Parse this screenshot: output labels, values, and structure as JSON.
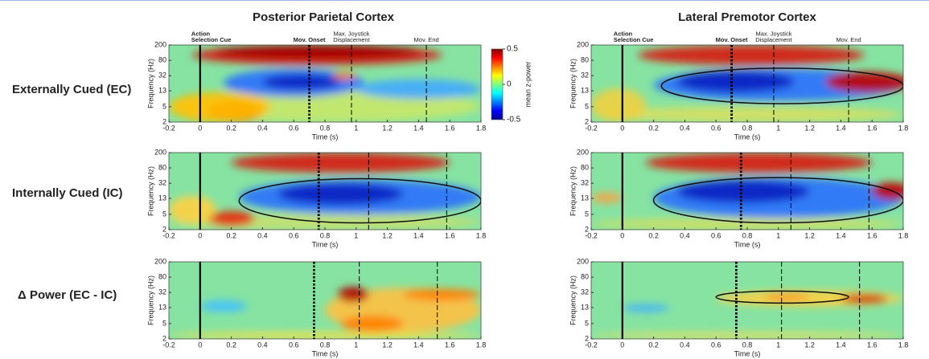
{
  "column_titles": [
    "Posterior Parietal Cortex",
    "Lateral Premotor Cortex"
  ],
  "row_labels": [
    "Externally Cued (EC)",
    "Internally Cued (IC)",
    "Δ Power (EC - IC)"
  ],
  "colorbar": {
    "label": "mean z-power",
    "lim": [
      -0.5,
      0.5
    ],
    "ticks": [
      0.5,
      0,
      -0.5
    ]
  },
  "chart_data": [
    {
      "type": "heatmap",
      "xlabel": "Time (s)",
      "ylabel": "Frequency (Hz)",
      "xlim": [
        -0.2,
        1.8
      ],
      "xticks": [
        -0.2,
        0,
        0.2,
        0.4,
        0.6,
        0.8,
        1,
        1.2,
        1.4,
        1.6,
        1.8
      ],
      "ylim": [
        2,
        200
      ],
      "yticks": [
        2,
        5,
        13,
        32,
        80,
        200
      ],
      "log_y": true,
      "events": [
        {
          "value": 0,
          "style": "solid",
          "label": [
            "Action",
            "Selection Cue"
          ]
        },
        {
          "value": 0.7,
          "style": "dotted",
          "label": [
            "Mov. Onset"
          ]
        },
        {
          "value": 0.97,
          "style": "dashed",
          "label": [
            "Max. Joystick",
            "Displacement"
          ]
        },
        {
          "value": 1.45,
          "style": "dashed",
          "label": [
            "Mov. End"
          ]
        }
      ]
    },
    {
      "type": "heatmap",
      "xlabel": "Time (s)",
      "ylabel": "Frequency (Hz)",
      "xlim": [
        -0.2,
        1.8
      ],
      "xticks": [
        -0.2,
        0,
        0.2,
        0.4,
        0.6,
        0.8,
        1,
        1.2,
        1.4,
        1.6,
        1.8
      ],
      "ylim": [
        2,
        200
      ],
      "yticks": [
        2,
        5,
        13,
        32,
        80,
        200
      ],
      "log_y": true,
      "events": [
        {
          "value": 0,
          "style": "solid",
          "label": [
            "Action",
            "Selection Cue"
          ]
        },
        {
          "value": 0.7,
          "style": "dotted",
          "label": [
            "Mov. Onset"
          ]
        },
        {
          "value": 0.97,
          "style": "dashed",
          "label": [
            "Max. Joystick",
            "Displacement"
          ]
        },
        {
          "value": 1.45,
          "style": "dashed",
          "label": [
            "Mov. End"
          ]
        }
      ]
    },
    {
      "type": "heatmap",
      "xlabel": "Time (s)",
      "ylabel": "Frequency (Hz)",
      "xlim": [
        -0.2,
        1.8
      ],
      "xticks": [
        -0.2,
        0,
        0.2,
        0.4,
        0.6,
        0.8,
        1,
        1.2,
        1.4,
        1.6,
        1.8
      ],
      "ylim": [
        2,
        200
      ],
      "yticks": [
        2,
        5,
        13,
        32,
        80,
        200
      ],
      "log_y": true,
      "events": [
        {
          "value": 0,
          "style": "solid"
        },
        {
          "value": 0.76,
          "style": "dotted"
        },
        {
          "value": 1.08,
          "style": "dashed"
        },
        {
          "value": 1.58,
          "style": "dashed"
        }
      ]
    },
    {
      "type": "heatmap",
      "xlabel": "Time (s)",
      "ylabel": "Frequency (Hz)",
      "xlim": [
        -0.2,
        1.8
      ],
      "xticks": [
        -0.2,
        0,
        0.2,
        0.4,
        0.6,
        0.8,
        1,
        1.2,
        1.4,
        1.6,
        1.8
      ],
      "ylim": [
        2,
        200
      ],
      "yticks": [
        2,
        5,
        13,
        32,
        80,
        200
      ],
      "log_y": true,
      "events": [
        {
          "value": 0,
          "style": "solid"
        },
        {
          "value": 0.76,
          "style": "dotted"
        },
        {
          "value": 1.08,
          "style": "dashed"
        },
        {
          "value": 1.58,
          "style": "dashed"
        }
      ]
    },
    {
      "type": "heatmap",
      "xlabel": "Time (s)",
      "ylabel": "Frequency (Hz)",
      "xlim": [
        -0.2,
        1.8
      ],
      "xticks": [
        -0.2,
        0,
        0.2,
        0.4,
        0.6,
        0.8,
        1,
        1.2,
        1.4,
        1.6,
        1.8
      ],
      "ylim": [
        2,
        200
      ],
      "yticks": [
        2,
        5,
        13,
        32,
        80,
        200
      ],
      "log_y": true,
      "events": [
        {
          "value": 0,
          "style": "solid"
        },
        {
          "value": 0.73,
          "style": "dotted"
        },
        {
          "value": 1.02,
          "style": "dashed"
        },
        {
          "value": 1.52,
          "style": "dashed"
        }
      ]
    },
    {
      "type": "heatmap",
      "xlabel": "Time (s)",
      "ylabel": "Frequency (Hz)",
      "xlim": [
        -0.2,
        1.8
      ],
      "xticks": [
        -0.2,
        0,
        0.2,
        0.4,
        0.6,
        0.8,
        1,
        1.2,
        1.4,
        1.6,
        1.8
      ],
      "ylim": [
        2,
        200
      ],
      "yticks": [
        2,
        5,
        13,
        32,
        80,
        200
      ],
      "log_y": true,
      "events": [
        {
          "value": 0,
          "style": "solid"
        },
        {
          "value": 0.73,
          "style": "dotted"
        },
        {
          "value": 1.02,
          "style": "dashed"
        },
        {
          "value": 1.52,
          "style": "dashed"
        }
      ]
    }
  ]
}
